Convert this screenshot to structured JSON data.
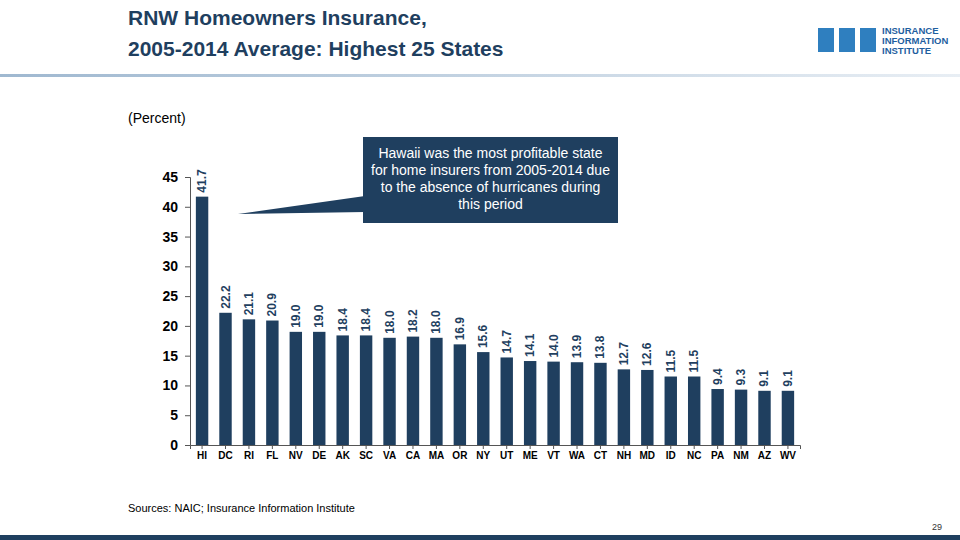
{
  "chart_data": {
    "type": "bar",
    "title": "RNW Homeowners Insurance,\n2005-2014 Average: Highest 25 States",
    "subtitle": "(Percent)",
    "annotations": [
      "Hawaii was the most profitable state for home insurers from 2005-2014 due to the absence of hurricanes during this period"
    ],
    "source": "Sources: NAIC; Insurance Information Institute",
    "page_number": "29",
    "logo": "INSURANCE\nINFORMATION\nINSTITUTE",
    "categories": [
      "HI",
      "DC",
      "RI",
      "FL",
      "NV",
      "DE",
      "AK",
      "SC",
      "VA",
      "CA",
      "MA",
      "OR",
      "NY",
      "UT",
      "ME",
      "VT",
      "WA",
      "CT",
      "NH",
      "MD",
      "ID",
      "NC",
      "PA",
      "NM",
      "AZ",
      "WV"
    ],
    "values": [
      41.7,
      22.2,
      21.1,
      20.9,
      19.0,
      19.0,
      18.4,
      18.4,
      18.0,
      18.2,
      18.0,
      16.9,
      15.6,
      14.7,
      14.1,
      14.0,
      13.9,
      13.8,
      12.7,
      12.6,
      11.5,
      11.5,
      9.4,
      9.3,
      9.1,
      9.1
    ],
    "value_labels": [
      "41.7",
      "22.2",
      "21.1",
      "20.9",
      "19.0",
      "19.0",
      "18.4",
      "18.4",
      "18.0",
      "18.2",
      "18.0",
      "16.9",
      "15.6",
      "14.7",
      "14.1",
      "14.0",
      "13.9",
      "13.8",
      "12.7",
      "12.6",
      "11.5",
      "11.5",
      "9.4",
      "9.3",
      "9.1",
      "9.1"
    ],
    "color": "#1f3f5f",
    "ylim": [
      0,
      45
    ],
    "yticks": [
      0,
      5,
      10,
      15,
      20,
      25,
      30,
      35,
      40,
      45
    ],
    "grid": false,
    "data_labels": true
  }
}
